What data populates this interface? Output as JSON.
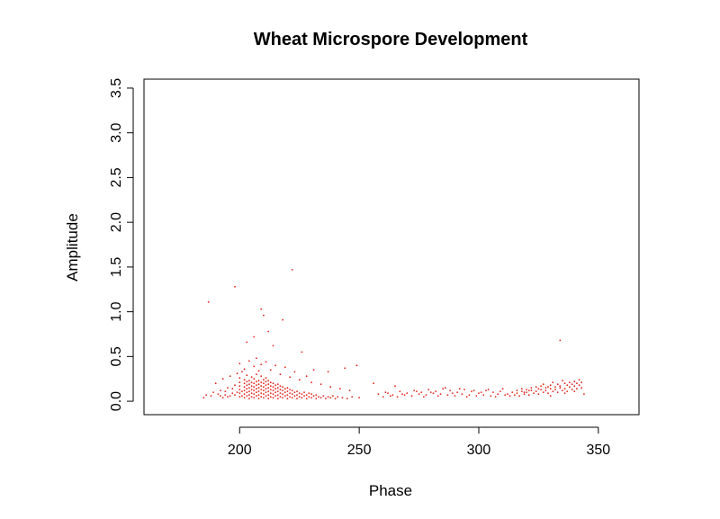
{
  "chart_data": {
    "type": "scatter",
    "title": "Wheat Microspore Development",
    "xlabel": "Phase",
    "ylabel": "Amplitude",
    "xlim": [
      160,
      367
    ],
    "ylim": [
      -0.15,
      3.6
    ],
    "xticks": [
      200,
      250,
      300,
      350
    ],
    "xtick_labels": [
      "200",
      "250",
      "300",
      "350"
    ],
    "yticks": [
      0.0,
      0.5,
      1.0,
      1.5,
      2.0,
      2.5,
      3.0,
      3.5
    ],
    "ytick_labels": [
      "0.0",
      "0.5",
      "1.0",
      "1.5",
      "2.0",
      "2.5",
      "3.0",
      "3.5"
    ],
    "grid": false,
    "legend": "none",
    "point_color": "#e2231a",
    "series": [
      {
        "points": [
          [
            187,
            1.11
          ],
          [
            198,
            1.28
          ],
          [
            209,
            1.03
          ],
          [
            210,
            0.96
          ],
          [
            222,
            1.47
          ],
          [
            218,
            0.91
          ],
          [
            212,
            0.78
          ],
          [
            206,
            0.72
          ],
          [
            203,
            0.66
          ],
          [
            214,
            0.62
          ],
          [
            226,
            0.55
          ],
          [
            334,
            0.68
          ],
          [
            244,
            0.37
          ],
          [
            249,
            0.4
          ],
          [
            237,
            0.33
          ],
          [
            231,
            0.35
          ],
          [
            256,
            0.2
          ],
          [
            265,
            0.17
          ],
          [
            200,
            0.42
          ],
          [
            204,
            0.45
          ],
          [
            207,
            0.48
          ],
          [
            211,
            0.44
          ],
          [
            215,
            0.4
          ],
          [
            219,
            0.38
          ],
          [
            223,
            0.33
          ],
          [
            228,
            0.28
          ],
          [
            202,
            0.36
          ],
          [
            206,
            0.39
          ],
          [
            209,
            0.41
          ],
          [
            213,
            0.35
          ],
          [
            190,
            0.2
          ],
          [
            193,
            0.25
          ],
          [
            196,
            0.28
          ],
          [
            199,
            0.31
          ],
          [
            201,
            0.33
          ],
          [
            208,
            0.34
          ],
          [
            217,
            0.3
          ],
          [
            221,
            0.27
          ],
          [
            225,
            0.24
          ],
          [
            230,
            0.21
          ],
          [
            234,
            0.19
          ],
          [
            238,
            0.16
          ],
          [
            242,
            0.14
          ],
          [
            246,
            0.12
          ],
          [
            186,
            0.07
          ],
          [
            189,
            0.1
          ],
          [
            192,
            0.12
          ],
          [
            195,
            0.15
          ],
          [
            185,
            0.04
          ],
          [
            188,
            0.06
          ],
          [
            191,
            0.08
          ],
          [
            194,
            0.11
          ],
          [
            197,
            0.14
          ],
          [
            198,
            0.18
          ],
          [
            200,
            0.05
          ],
          [
            200,
            0.09
          ],
          [
            200,
            0.13
          ],
          [
            200,
            0.17
          ],
          [
            200,
            0.21
          ],
          [
            200,
            0.26
          ],
          [
            202,
            0.04
          ],
          [
            202,
            0.08
          ],
          [
            202,
            0.12
          ],
          [
            202,
            0.16
          ],
          [
            202,
            0.2
          ],
          [
            202,
            0.24
          ],
          [
            203,
            0.06
          ],
          [
            203,
            0.1
          ],
          [
            203,
            0.14
          ],
          [
            203,
            0.18
          ],
          [
            203,
            0.22
          ],
          [
            203,
            0.29
          ],
          [
            204,
            0.03
          ],
          [
            204,
            0.07
          ],
          [
            204,
            0.11
          ],
          [
            204,
            0.15
          ],
          [
            204,
            0.19
          ],
          [
            204,
            0.23
          ],
          [
            205,
            0.05
          ],
          [
            205,
            0.09
          ],
          [
            205,
            0.13
          ],
          [
            205,
            0.17
          ],
          [
            205,
            0.21
          ],
          [
            205,
            0.27
          ],
          [
            206,
            0.04
          ],
          [
            206,
            0.08
          ],
          [
            206,
            0.12
          ],
          [
            206,
            0.16
          ],
          [
            206,
            0.2
          ],
          [
            206,
            0.25
          ],
          [
            207,
            0.06
          ],
          [
            207,
            0.1
          ],
          [
            207,
            0.14
          ],
          [
            207,
            0.18
          ],
          [
            207,
            0.22
          ],
          [
            207,
            0.3
          ],
          [
            208,
            0.03
          ],
          [
            208,
            0.07
          ],
          [
            208,
            0.11
          ],
          [
            208,
            0.15
          ],
          [
            208,
            0.19
          ],
          [
            208,
            0.23
          ],
          [
            209,
            0.05
          ],
          [
            209,
            0.09
          ],
          [
            209,
            0.13
          ],
          [
            209,
            0.17
          ],
          [
            209,
            0.21
          ],
          [
            209,
            0.28
          ],
          [
            210,
            0.04
          ],
          [
            210,
            0.08
          ],
          [
            210,
            0.12
          ],
          [
            210,
            0.16
          ],
          [
            210,
            0.2
          ],
          [
            210,
            0.24
          ],
          [
            211,
            0.06
          ],
          [
            211,
            0.1
          ],
          [
            211,
            0.14
          ],
          [
            211,
            0.18
          ],
          [
            211,
            0.22
          ],
          [
            211,
            0.26
          ],
          [
            212,
            0.03
          ],
          [
            212,
            0.07
          ],
          [
            212,
            0.11
          ],
          [
            212,
            0.15
          ],
          [
            212,
            0.19
          ],
          [
            212,
            0.23
          ],
          [
            213,
            0.05
          ],
          [
            213,
            0.09
          ],
          [
            213,
            0.13
          ],
          [
            213,
            0.17
          ],
          [
            213,
            0.21
          ],
          [
            214,
            0.04
          ],
          [
            214,
            0.08
          ],
          [
            214,
            0.12
          ],
          [
            214,
            0.16
          ],
          [
            214,
            0.2
          ],
          [
            215,
            0.06
          ],
          [
            215,
            0.1
          ],
          [
            215,
            0.14
          ],
          [
            215,
            0.18
          ],
          [
            216,
            0.03
          ],
          [
            216,
            0.07
          ],
          [
            216,
            0.11
          ],
          [
            216,
            0.15
          ],
          [
            216,
            0.19
          ],
          [
            217,
            0.05
          ],
          [
            217,
            0.09
          ],
          [
            217,
            0.13
          ],
          [
            217,
            0.17
          ],
          [
            218,
            0.04
          ],
          [
            218,
            0.08
          ],
          [
            218,
            0.12
          ],
          [
            218,
            0.16
          ],
          [
            219,
            0.06
          ],
          [
            219,
            0.1
          ],
          [
            219,
            0.14
          ],
          [
            220,
            0.03
          ],
          [
            220,
            0.07
          ],
          [
            220,
            0.11
          ],
          [
            220,
            0.15
          ],
          [
            221,
            0.05
          ],
          [
            221,
            0.09
          ],
          [
            221,
            0.13
          ],
          [
            222,
            0.04
          ],
          [
            222,
            0.08
          ],
          [
            222,
            0.12
          ],
          [
            223,
            0.06
          ],
          [
            223,
            0.1
          ],
          [
            224,
            0.03
          ],
          [
            224,
            0.07
          ],
          [
            224,
            0.11
          ],
          [
            225,
            0.05
          ],
          [
            225,
            0.09
          ],
          [
            226,
            0.04
          ],
          [
            226,
            0.08
          ],
          [
            227,
            0.06
          ],
          [
            227,
            0.1
          ],
          [
            228,
            0.03
          ],
          [
            228,
            0.07
          ],
          [
            229,
            0.05
          ],
          [
            229,
            0.09
          ],
          [
            230,
            0.04
          ],
          [
            230,
            0.08
          ],
          [
            231,
            0.06
          ],
          [
            232,
            0.03
          ],
          [
            232,
            0.07
          ],
          [
            233,
            0.05
          ],
          [
            234,
            0.04
          ],
          [
            235,
            0.06
          ],
          [
            236,
            0.03
          ],
          [
            237,
            0.05
          ],
          [
            238,
            0.04
          ],
          [
            239,
            0.06
          ],
          [
            240,
            0.03
          ],
          [
            241,
            0.05
          ],
          [
            243,
            0.04
          ],
          [
            245,
            0.03
          ],
          [
            247,
            0.05
          ],
          [
            250,
            0.04
          ],
          [
            196,
            0.06
          ],
          [
            197,
            0.09
          ],
          [
            198,
            0.07
          ],
          [
            199,
            0.1
          ],
          [
            201,
            0.06
          ],
          [
            201,
            0.11
          ],
          [
            195,
            0.05
          ],
          [
            194,
            0.07
          ],
          [
            193,
            0.04
          ],
          [
            192,
            0.06
          ],
          [
            258,
            0.08
          ],
          [
            261,
            0.1
          ],
          [
            264,
            0.07
          ],
          [
            267,
            0.11
          ],
          [
            270,
            0.09
          ],
          [
            273,
            0.12
          ],
          [
            276,
            0.1
          ],
          [
            279,
            0.13
          ],
          [
            282,
            0.11
          ],
          [
            285,
            0.14
          ],
          [
            288,
            0.12
          ],
          [
            291,
            0.1
          ],
          [
            294,
            0.13
          ],
          [
            297,
            0.11
          ],
          [
            300,
            0.09
          ],
          [
            303,
            0.12
          ],
          [
            306,
            0.1
          ],
          [
            309,
            0.11
          ],
          [
            260,
            0.05
          ],
          [
            263,
            0.06
          ],
          [
            266,
            0.05
          ],
          [
            269,
            0.07
          ],
          [
            272,
            0.06
          ],
          [
            275,
            0.08
          ],
          [
            278,
            0.07
          ],
          [
            281,
            0.09
          ],
          [
            284,
            0.08
          ],
          [
            287,
            0.07
          ],
          [
            290,
            0.06
          ],
          [
            293,
            0.08
          ],
          [
            296,
            0.07
          ],
          [
            299,
            0.06
          ],
          [
            302,
            0.07
          ],
          [
            305,
            0.06
          ],
          [
            308,
            0.08
          ],
          [
            311,
            0.07
          ],
          [
            262,
            0.09
          ],
          [
            268,
            0.08
          ],
          [
            274,
            0.11
          ],
          [
            280,
            0.1
          ],
          [
            286,
            0.15
          ],
          [
            292,
            0.14
          ],
          [
            298,
            0.12
          ],
          [
            304,
            0.13
          ],
          [
            310,
            0.14
          ],
          [
            277,
            0.05
          ],
          [
            283,
            0.06
          ],
          [
            289,
            0.09
          ],
          [
            295,
            0.05
          ],
          [
            301,
            0.1
          ],
          [
            307,
            0.05
          ],
          [
            312,
            0.08
          ],
          [
            314,
            0.1
          ],
          [
            316,
            0.09
          ],
          [
            318,
            0.11
          ],
          [
            320,
            0.1
          ],
          [
            322,
            0.12
          ],
          [
            324,
            0.11
          ],
          [
            326,
            0.13
          ],
          [
            328,
            0.12
          ],
          [
            330,
            0.14
          ],
          [
            332,
            0.13
          ],
          [
            334,
            0.15
          ],
          [
            336,
            0.14
          ],
          [
            338,
            0.16
          ],
          [
            340,
            0.17
          ],
          [
            342,
            0.18
          ],
          [
            313,
            0.06
          ],
          [
            315,
            0.07
          ],
          [
            317,
            0.06
          ],
          [
            319,
            0.08
          ],
          [
            321,
            0.07
          ],
          [
            323,
            0.09
          ],
          [
            325,
            0.08
          ],
          [
            327,
            0.1
          ],
          [
            329,
            0.09
          ],
          [
            331,
            0.11
          ],
          [
            333,
            0.1
          ],
          [
            335,
            0.12
          ],
          [
            337,
            0.11
          ],
          [
            339,
            0.13
          ],
          [
            341,
            0.14
          ],
          [
            343,
            0.15
          ],
          [
            318,
            0.14
          ],
          [
            322,
            0.15
          ],
          [
            326,
            0.17
          ],
          [
            330,
            0.18
          ],
          [
            333,
            0.19
          ],
          [
            336,
            0.2
          ],
          [
            338,
            0.21
          ],
          [
            340,
            0.22
          ],
          [
            342,
            0.24
          ],
          [
            335,
            0.23
          ],
          [
            331,
            0.21
          ],
          [
            327,
            0.19
          ],
          [
            324,
            0.16
          ],
          [
            320,
            0.13
          ],
          [
            316,
            0.12
          ],
          [
            329,
            0.16
          ],
          [
            337,
            0.18
          ],
          [
            339,
            0.19
          ],
          [
            334,
            0.17
          ],
          [
            332,
            0.16
          ],
          [
            328,
            0.15
          ],
          [
            325,
            0.14
          ],
          [
            321,
            0.12
          ],
          [
            319,
            0.1
          ],
          [
            341,
            0.2
          ],
          [
            343,
            0.21
          ],
          [
            336,
            0.09
          ],
          [
            340,
            0.11
          ],
          [
            330,
            0.06
          ],
          [
            344,
            0.08
          ]
        ]
      }
    ]
  }
}
